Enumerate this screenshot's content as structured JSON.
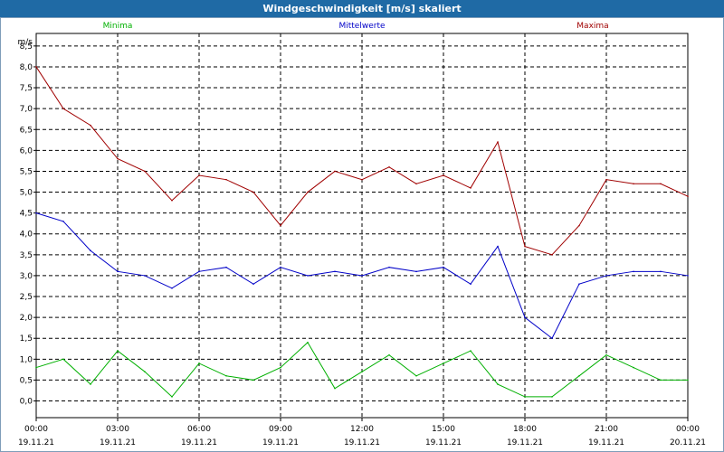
{
  "window": {
    "title": "Windgeschwindigkeit [m/s] skaliert"
  },
  "chart_data": {
    "type": "line",
    "unit": "m/s",
    "ylim": [
      -0.4,
      8.8
    ],
    "yticks": [
      "0,0",
      "0,5",
      "1,0",
      "1,5",
      "2,0",
      "2,5",
      "3,0",
      "3,5",
      "4,0",
      "4,5",
      "5,0",
      "5,5",
      "6,0",
      "6,5",
      "7,0",
      "7,5",
      "8,0",
      "8,5"
    ],
    "xticks": [
      {
        "time": "00:00",
        "date": "19.11.21"
      },
      {
        "time": "03:00",
        "date": "19.11.21"
      },
      {
        "time": "06:00",
        "date": "19.11.21"
      },
      {
        "time": "09:00",
        "date": "19.11.21"
      },
      {
        "time": "12:00",
        "date": "19.11.21"
      },
      {
        "time": "15:00",
        "date": "19.11.21"
      },
      {
        "time": "18:00",
        "date": "19.11.21"
      },
      {
        "time": "21:00",
        "date": "19.11.21"
      },
      {
        "time": "00:00",
        "date": "20.11.21"
      }
    ],
    "x_hours": [
      0,
      1,
      2,
      3,
      4,
      5,
      6,
      7,
      8,
      9,
      10,
      11,
      12,
      13,
      14,
      15,
      16,
      17,
      18,
      19,
      20,
      21,
      22,
      23,
      24
    ],
    "grid": true,
    "series": [
      {
        "name": "Minima",
        "color": "#00b000",
        "values": [
          0.8,
          1.0,
          0.4,
          1.2,
          0.7,
          0.1,
          0.9,
          0.6,
          0.5,
          0.8,
          1.4,
          0.3,
          0.7,
          1.1,
          0.6,
          0.9,
          1.2,
          0.4,
          0.1,
          0.1,
          0.6,
          1.1,
          0.8,
          0.5,
          0.5
        ]
      },
      {
        "name": "Mittelwerte",
        "color": "#0000c8",
        "values": [
          4.5,
          4.3,
          3.6,
          3.1,
          3.0,
          2.7,
          3.1,
          3.2,
          2.8,
          3.2,
          3.0,
          3.1,
          3.0,
          3.2,
          3.1,
          3.2,
          2.8,
          3.7,
          2.0,
          1.5,
          2.8,
          3.0,
          3.1,
          3.1,
          3.0
        ]
      },
      {
        "name": "Maxima",
        "color": "#a00000",
        "values": [
          8.0,
          7.0,
          6.6,
          5.8,
          5.5,
          4.8,
          5.4,
          5.3,
          5.0,
          4.2,
          5.0,
          5.5,
          5.3,
          5.6,
          5.2,
          5.4,
          5.1,
          6.2,
          3.7,
          3.5,
          4.2,
          5.3,
          5.2,
          5.2,
          4.9
        ]
      }
    ]
  }
}
